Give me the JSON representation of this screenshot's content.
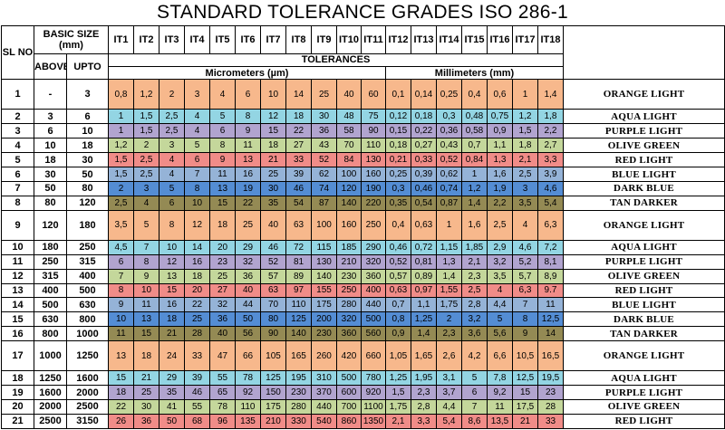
{
  "title": "STANDARD TOLERANCE GRADES ISO 286-1",
  "headers": {
    "sl": "SL NO",
    "basic_size": "BASIC SIZE (mm)",
    "above": "ABOVE",
    "upto": "UPTO",
    "grades": [
      "IT1",
      "IT2",
      "IT3",
      "IT4",
      "IT5",
      "IT6",
      "IT7",
      "IT8",
      "IT9",
      "IT10",
      "IT11",
      "IT12",
      "IT13",
      "IT14",
      "IT15",
      "IT16",
      "IT17",
      "IT18"
    ],
    "tolerances": "TOLERANCES",
    "micrometers": "Micrometers (µm)",
    "millimeters": "Millimeters (mm)"
  },
  "colors": {
    "ORANGE LIGHT": "#f7b88c",
    "AQUA LIGHT": "#93d5e3",
    "PURPLE LIGHT": "#b1a4cf",
    "OLIVE GREEN": "#c4d79b",
    "RED LIGHT": "#f08c88",
    "BLUE LIGHT": "#95b3d7",
    "DARK BLUE": "#548dd4",
    "TAN DARKER": "#948a54"
  },
  "rows": [
    {
      "sl": "1",
      "above": "-",
      "upto": "3",
      "values": [
        "0,8",
        "1,2",
        "2",
        "3",
        "4",
        "6",
        "10",
        "14",
        "25",
        "40",
        "60",
        "0,1",
        "0,14",
        "0,25",
        "0,4",
        "0,6",
        "1",
        "1,4"
      ],
      "color_name": "ORANGE LIGHT"
    },
    {
      "sl": "2",
      "above": "3",
      "upto": "6",
      "values": [
        "1",
        "1,5",
        "2,5",
        "4",
        "5",
        "8",
        "12",
        "18",
        "30",
        "48",
        "75",
        "0,12",
        "0,18",
        "0,3",
        "0,48",
        "0,75",
        "1,2",
        "1,8"
      ],
      "color_name": "AQUA LIGHT"
    },
    {
      "sl": "3",
      "above": "6",
      "upto": "10",
      "values": [
        "1",
        "1,5",
        "2,5",
        "4",
        "6",
        "9",
        "15",
        "22",
        "36",
        "58",
        "90",
        "0,15",
        "0,22",
        "0,36",
        "0,58",
        "0,9",
        "1,5",
        "2,2"
      ],
      "color_name": "PURPLE LIGHT"
    },
    {
      "sl": "4",
      "above": "10",
      "upto": "18",
      "values": [
        "1,2",
        "2",
        "3",
        "5",
        "8",
        "11",
        "18",
        "27",
        "43",
        "70",
        "110",
        "0,18",
        "0,27",
        "0,43",
        "0,7",
        "1,1",
        "1,8",
        "2,7"
      ],
      "color_name": "OLIVE GREEN"
    },
    {
      "sl": "5",
      "above": "18",
      "upto": "30",
      "values": [
        "1,5",
        "2,5",
        "4",
        "6",
        "9",
        "13",
        "21",
        "33",
        "52",
        "84",
        "130",
        "0,21",
        "0,33",
        "0,52",
        "0,84",
        "1,3",
        "2,1",
        "3,3"
      ],
      "color_name": "RED LIGHT"
    },
    {
      "sl": "6",
      "above": "30",
      "upto": "50",
      "values": [
        "1,5",
        "2,5",
        "4",
        "7",
        "11",
        "16",
        "25",
        "39",
        "62",
        "100",
        "160",
        "0,25",
        "0,39",
        "0,62",
        "1",
        "1,6",
        "2,5",
        "3,9"
      ],
      "color_name": "BLUE LIGHT"
    },
    {
      "sl": "7",
      "above": "50",
      "upto": "80",
      "values": [
        "2",
        "3",
        "5",
        "8",
        "13",
        "19",
        "30",
        "46",
        "74",
        "120",
        "190",
        "0,3",
        "0,46",
        "0,74",
        "1,2",
        "1,9",
        "3",
        "4,6"
      ],
      "color_name": "DARK BLUE"
    },
    {
      "sl": "8",
      "above": "80",
      "upto": "120",
      "values": [
        "2,5",
        "4",
        "6",
        "10",
        "15",
        "22",
        "35",
        "54",
        "87",
        "140",
        "220",
        "0,35",
        "0,54",
        "0,87",
        "1,4",
        "2,2",
        "3,5",
        "5,4"
      ],
      "color_name": "TAN DARKER"
    },
    {
      "sl": "9",
      "above": "120",
      "upto": "180",
      "values": [
        "3,5",
        "5",
        "8",
        "12",
        "18",
        "25",
        "40",
        "63",
        "100",
        "160",
        "250",
        "0,4",
        "0,63",
        "1",
        "1,6",
        "2,5",
        "4",
        "6,3"
      ],
      "color_name": "ORANGE LIGHT"
    },
    {
      "sl": "10",
      "above": "180",
      "upto": "250",
      "values": [
        "4,5",
        "7",
        "10",
        "14",
        "20",
        "29",
        "46",
        "72",
        "115",
        "185",
        "290",
        "0,46",
        "0,72",
        "1,15",
        "1,85",
        "2,9",
        "4,6",
        "7,2"
      ],
      "color_name": "AQUA LIGHT"
    },
    {
      "sl": "11",
      "above": "250",
      "upto": "315",
      "values": [
        "6",
        "8",
        "12",
        "16",
        "23",
        "32",
        "52",
        "81",
        "130",
        "210",
        "320",
        "0,52",
        "0,81",
        "1,3",
        "2,1",
        "3,2",
        "5,2",
        "8,1"
      ],
      "color_name": "PURPLE LIGHT"
    },
    {
      "sl": "12",
      "above": "315",
      "upto": "400",
      "values": [
        "7",
        "9",
        "13",
        "18",
        "25",
        "36",
        "57",
        "89",
        "140",
        "230",
        "360",
        "0,57",
        "0,89",
        "1,4",
        "2,3",
        "3,5",
        "5,7",
        "8,9"
      ],
      "color_name": "OLIVE GREEN"
    },
    {
      "sl": "13",
      "above": "400",
      "upto": "500",
      "values": [
        "8",
        "10",
        "15",
        "20",
        "27",
        "40",
        "63",
        "97",
        "155",
        "250",
        "400",
        "0,63",
        "0,97",
        "1,55",
        "2,5",
        "4",
        "6,3",
        "9.7"
      ],
      "color_name": "RED LIGHT"
    },
    {
      "sl": "14",
      "above": "500",
      "upto": "630",
      "values": [
        "9",
        "11",
        "16",
        "22",
        "32",
        "44",
        "70",
        "110",
        "175",
        "280",
        "440",
        "0,7",
        "1,1",
        "1,75",
        "2,8",
        "4,4",
        "7",
        "11"
      ],
      "color_name": "BLUE LIGHT"
    },
    {
      "sl": "15",
      "above": "630",
      "upto": "800",
      "values": [
        "10",
        "13",
        "18",
        "25",
        "36",
        "50",
        "80",
        "125",
        "200",
        "320",
        "500",
        "0,8",
        "1,25",
        "2",
        "3,2",
        "5",
        "8",
        "12,5"
      ],
      "color_name": "DARK BLUE"
    },
    {
      "sl": "16",
      "above": "800",
      "upto": "1000",
      "values": [
        "11",
        "15",
        "21",
        "28",
        "40",
        "56",
        "90",
        "140",
        "230",
        "360",
        "560",
        "0,9",
        "1,4",
        "2,3",
        "3,6",
        "5,6",
        "9",
        "14"
      ],
      "color_name": "TAN DARKER"
    },
    {
      "sl": "17",
      "above": "1000",
      "upto": "1250",
      "values": [
        "13",
        "18",
        "24",
        "33",
        "47",
        "66",
        "105",
        "165",
        "260",
        "420",
        "660",
        "1,05",
        "1,65",
        "2,6",
        "4,2",
        "6,6",
        "10,5",
        "16,5"
      ],
      "color_name": "ORANGE LIGHT"
    },
    {
      "sl": "18",
      "above": "1250",
      "upto": "1600",
      "values": [
        "15",
        "21",
        "29",
        "39",
        "55",
        "78",
        "125",
        "195",
        "310",
        "500",
        "780",
        "1,25",
        "1,95",
        "3,1",
        "5",
        "7,8",
        "12,5",
        "19,5"
      ],
      "color_name": "AQUA LIGHT"
    },
    {
      "sl": "19",
      "above": "1600",
      "upto": "2000",
      "values": [
        "18",
        "25",
        "35",
        "46",
        "65",
        "92",
        "150",
        "230",
        "370",
        "600",
        "920",
        "1,5",
        "2,3",
        "3,7",
        "6",
        "9,2",
        "15",
        "23"
      ],
      "color_name": "PURPLE LIGHT"
    },
    {
      "sl": "20",
      "above": "2000",
      "upto": "2500",
      "values": [
        "22",
        "30",
        "41",
        "55",
        "78",
        "110",
        "175",
        "280",
        "440",
        "700",
        "1100",
        "1,75",
        "2,8",
        "4,4",
        "7",
        "11",
        "17,5",
        "28"
      ],
      "color_name": "OLIVE GREEN"
    },
    {
      "sl": "21",
      "above": "2500",
      "upto": "3150",
      "values": [
        "26",
        "36",
        "50",
        "68",
        "96",
        "135",
        "210",
        "330",
        "540",
        "860",
        "1350",
        "2,1",
        "3,3",
        "5,4",
        "8,6",
        "13,5",
        "21",
        "33"
      ],
      "color_name": "RED LIGHT"
    }
  ]
}
